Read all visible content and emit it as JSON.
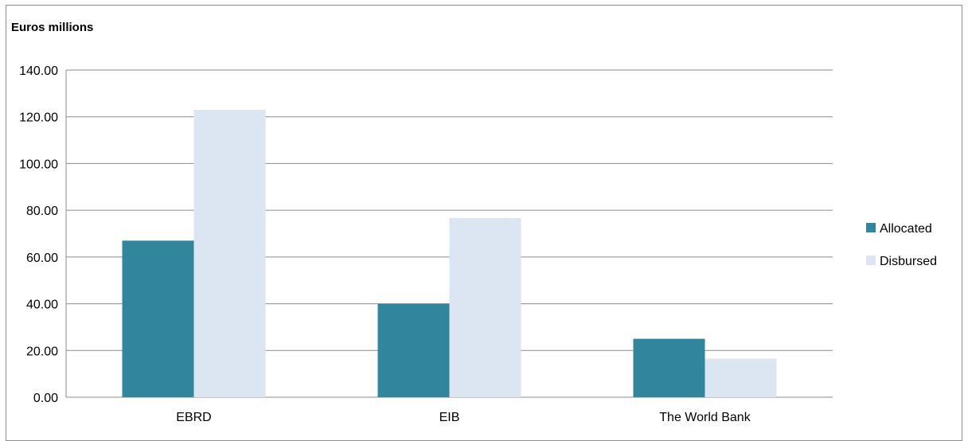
{
  "chart_data": {
    "type": "bar",
    "title": "",
    "ylabel": "Euros millions",
    "xlabel": "",
    "categories": [
      "EBRD",
      "EIB",
      "The World Bank"
    ],
    "series": [
      {
        "name": "Allocated",
        "values": [
          67.0,
          40.0,
          25.0
        ],
        "color": "#31859c"
      },
      {
        "name": "Disbursed",
        "values": [
          123.0,
          76.7,
          16.5
        ],
        "color": "#dce6f2"
      }
    ],
    "ylim": [
      0,
      140
    ],
    "yticks": [
      "0.00",
      "20.00",
      "40.00",
      "60.00",
      "80.00",
      "100.00",
      "120.00",
      "140.00"
    ],
    "grid": true,
    "legend": "right"
  }
}
